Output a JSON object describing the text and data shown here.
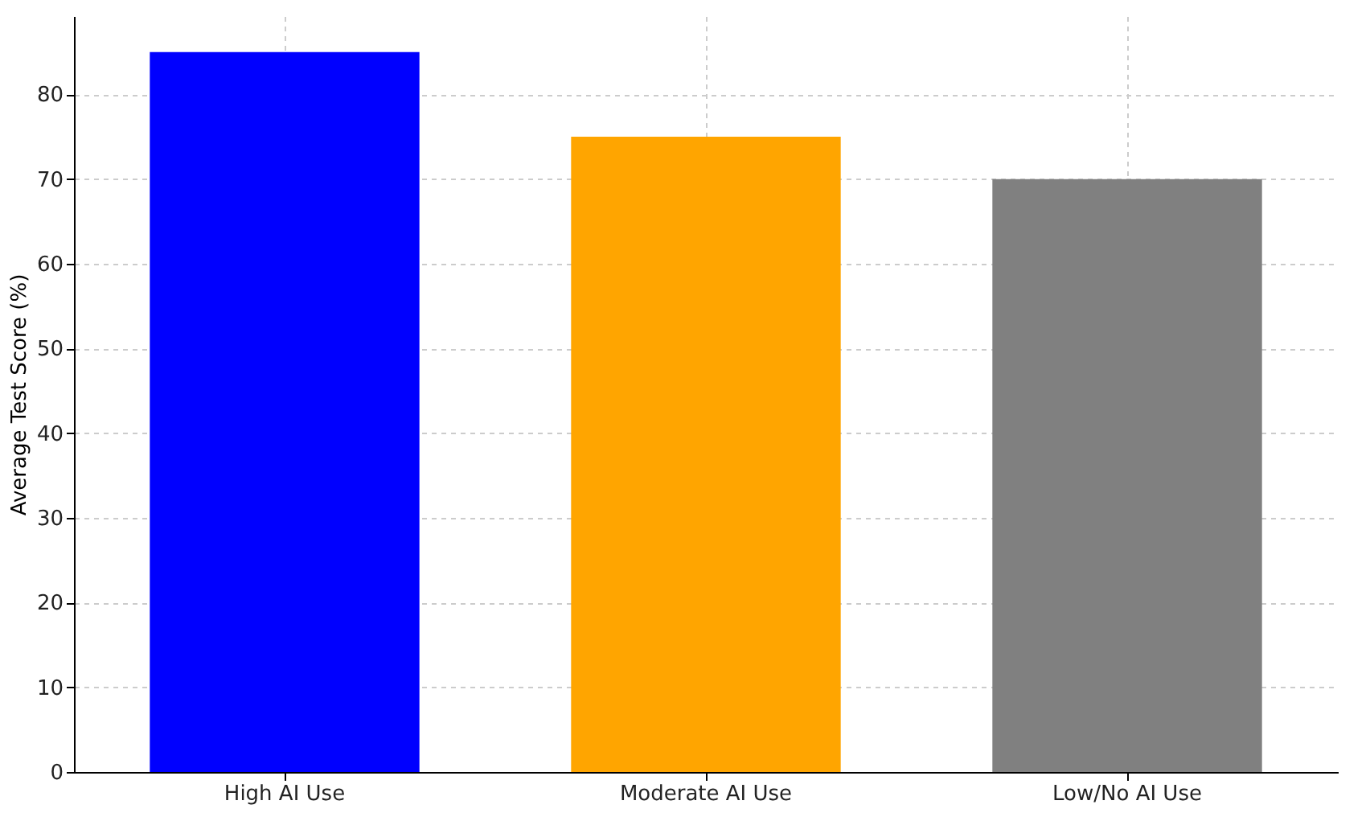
{
  "chart_data": {
    "type": "bar",
    "ylabel": "Average Test Score (%)",
    "categories": [
      "High AI Use",
      "Moderate AI Use",
      "Low/No AI Use"
    ],
    "values": [
      85,
      75,
      70
    ],
    "colors": [
      "#0000ff",
      "#ffa500",
      "#808080"
    ],
    "ylim": [
      0,
      89.25
    ],
    "yticks": [
      0,
      10,
      20,
      30,
      40,
      50,
      60,
      70,
      80
    ],
    "grid": true
  }
}
